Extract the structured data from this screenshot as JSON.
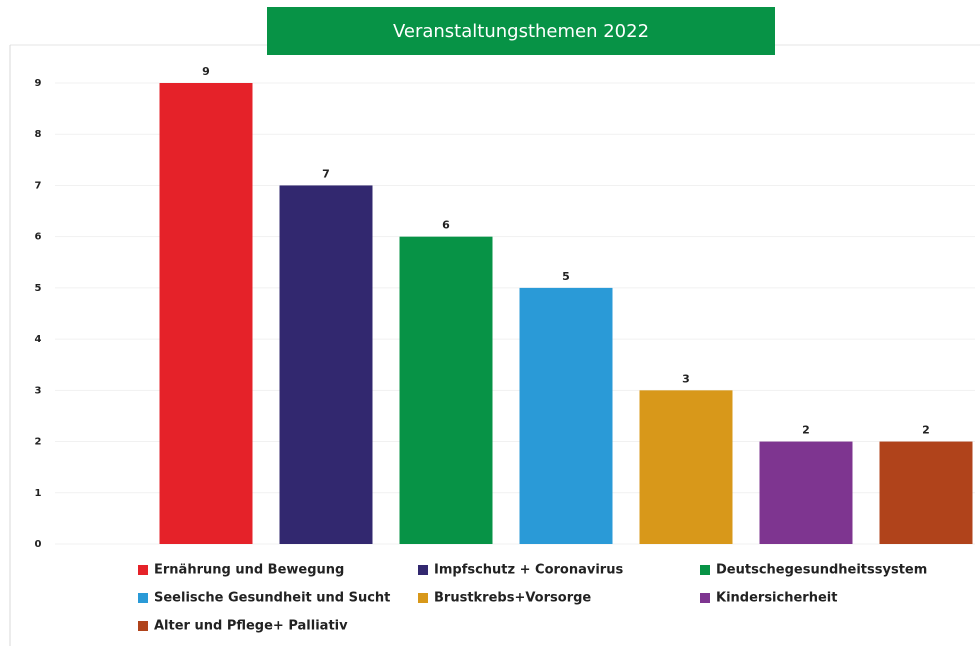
{
  "chart_data": {
    "type": "bar",
    "title": "Veranstaltungsthemen 2022",
    "categories": [
      "Ernährung und Bewegung",
      "Impfschutz + Coronavirus",
      "Deutschegesundheitssystem",
      "Seelische Gesundheit und Sucht",
      "Brustkrebs+Vorsorge",
      "Kindersicherheit",
      "Alter und Pflege+ Palliativ"
    ],
    "values": [
      9,
      7,
      6,
      5,
      3,
      2,
      2
    ],
    "colors": [
      "#e52229",
      "#32286f",
      "#079346",
      "#2a9ad7",
      "#d8981a",
      "#7e3590",
      "#b0431b"
    ],
    "ylim": [
      0,
      9
    ],
    "yticks": [
      0,
      1,
      2,
      3,
      4,
      5,
      6,
      7,
      8,
      9
    ],
    "grid": true,
    "legend": "bottom"
  }
}
